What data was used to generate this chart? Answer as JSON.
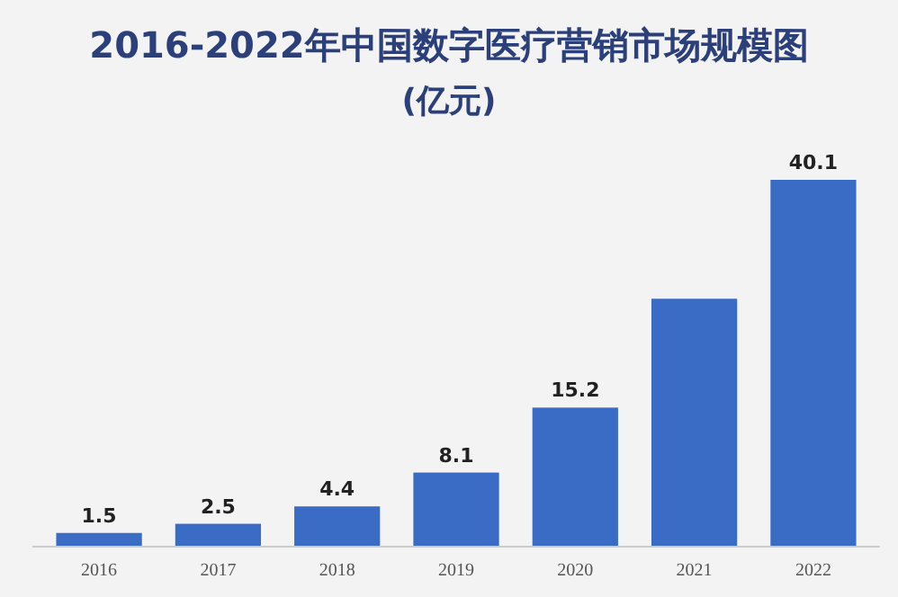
{
  "chart_data": {
    "type": "bar",
    "title": "2016-2022年中国数字医疗营销市场规模图",
    "subtitle": "(亿元)",
    "categories": [
      "2016",
      "2017",
      "2018",
      "2019",
      "2020",
      "2021",
      "2022"
    ],
    "values": [
      1.5,
      2.5,
      4.4,
      8.1,
      15.2,
      27.1,
      40.1
    ],
    "value_labels": [
      "1.5",
      "2.5",
      "4.4",
      "8.1",
      "15.2",
      null,
      "40.1"
    ],
    "color": "#3a6cc6"
  }
}
